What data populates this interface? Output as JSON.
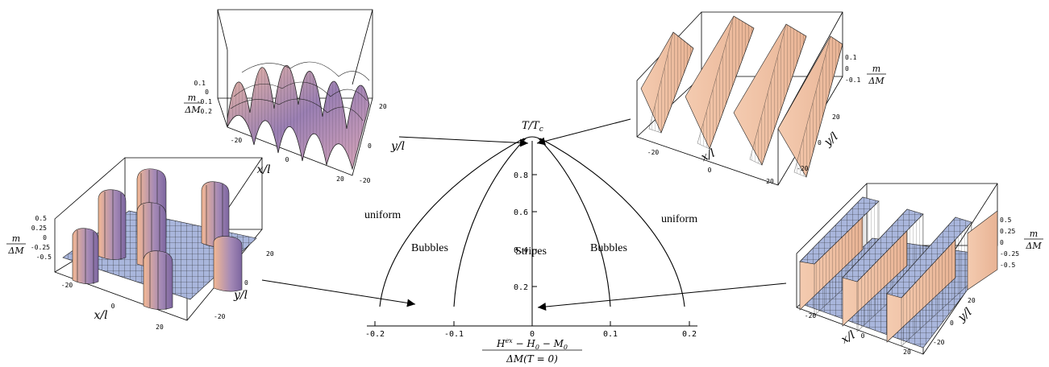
{
  "phase_diagram": {
    "y_axis_label": "T/T_c",
    "x_axis_label": {
      "numerator": "H^ex − H_0 − M_0",
      "denominator": "ΔM(T = 0)"
    },
    "x_ticks": [
      "-0.2",
      "-0.1",
      "0",
      "0.1",
      "0.2"
    ],
    "y_ticks": [
      "0.2",
      "0.4",
      "0.6",
      "0.8"
    ],
    "regions": {
      "uniform_left": "uniform",
      "bubbles_left": "Bubbles",
      "stripes": "Stripes",
      "bubbles_right": "Bubbles",
      "uniform_right": "uniform"
    }
  },
  "surface_plots": [
    {
      "id": "top-left",
      "z_ticks": [
        "0.1",
        "0",
        "-0.1",
        "-0.2"
      ],
      "x_ticks": [
        "-20",
        "0",
        "20"
      ],
      "y_ticks": [
        "20",
        "0",
        "-20"
      ],
      "x_label": "x/l",
      "y_label": "y/l",
      "z_label_num": "m",
      "z_label_den": "ΔM"
    },
    {
      "id": "top-right",
      "z_ticks": [
        "0.1",
        "0",
        "-0.1"
      ],
      "x_ticks": [
        "-20",
        "0",
        "20"
      ],
      "y_ticks": [
        "20",
        "0",
        "-20"
      ],
      "x_label": "x/l",
      "y_label": "y/l",
      "z_label_num": "m",
      "z_label_den": "ΔM"
    },
    {
      "id": "bottom-left",
      "z_ticks": [
        "0.5",
        "0.25",
        "0",
        "-0.25",
        "-0.5"
      ],
      "x_ticks": [
        "-20",
        "0",
        "20"
      ],
      "y_ticks": [
        "20",
        "0",
        "-20"
      ],
      "x_label": "x/l",
      "y_label": "y/l",
      "z_label_num": "m",
      "z_label_den": "ΔM"
    },
    {
      "id": "bottom-right",
      "z_ticks": [
        "0.5",
        "0.25",
        "0",
        "-0.25",
        "-0.5"
      ],
      "x_ticks": [
        "-20",
        "0",
        "20"
      ],
      "y_ticks": [
        "20",
        "0",
        "-20"
      ],
      "x_label": "x/l",
      "y_label": "y/l",
      "z_label_num": "m",
      "z_label_den": "ΔM"
    }
  ],
  "colors": {
    "stripe_surface": "#f1c4a6",
    "bubble_surface_light": "#f2b89a",
    "bubble_surface_dark": "#8a6ea8",
    "flat_grid": "#a8b4d8",
    "grid_lines": "#000000"
  }
}
